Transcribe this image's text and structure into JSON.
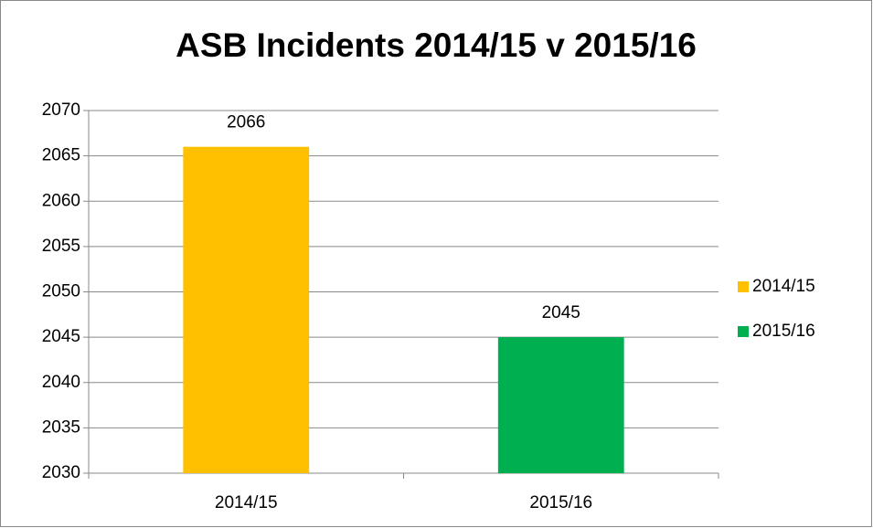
{
  "chart_data": {
    "type": "bar",
    "title": "ASB Incidents 2014/15 v 2015/16",
    "categories": [
      "2014/15",
      "2015/16"
    ],
    "values": [
      2066,
      2045
    ],
    "colors": [
      "#ffc000",
      "#00b050"
    ],
    "ylim": [
      2030,
      2070
    ],
    "yticks": [
      2030,
      2035,
      2040,
      2045,
      2050,
      2055,
      2060,
      2065,
      2070
    ],
    "grid": true,
    "legend": "right"
  }
}
